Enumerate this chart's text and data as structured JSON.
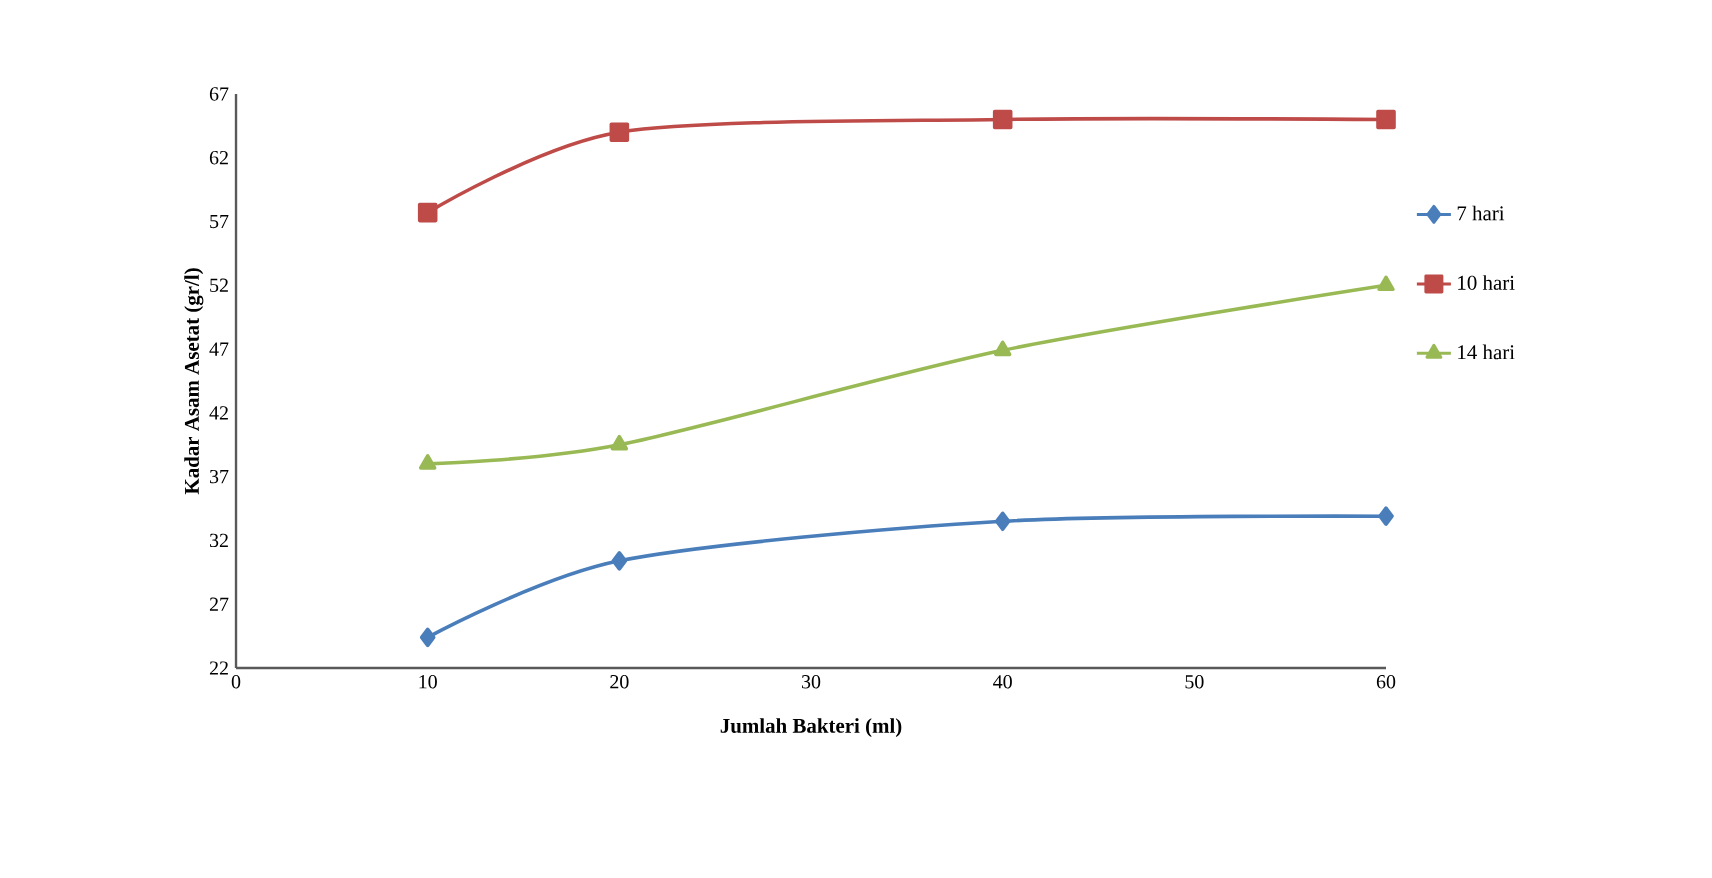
{
  "chart_data": {
    "type": "line",
    "xlabel": "Jumlah Bakteri (ml)",
    "ylabel": "Kadar Asam Asetat (gr/l)",
    "x": [
      10,
      20,
      40,
      60
    ],
    "series": [
      {
        "name": "7 hari",
        "color": "#4a7ebb",
        "marker": "diamond",
        "values": [
          24.4,
          30.4,
          33.5,
          33.9
        ]
      },
      {
        "name": "10 hari",
        "color": "#be4b48",
        "marker": "square",
        "values": [
          57.7,
          64.0,
          65.0,
          65.0
        ]
      },
      {
        "name": "14 hari",
        "color": "#98b954",
        "marker": "triangle",
        "values": [
          38.0,
          39.5,
          46.9,
          52.0
        ]
      }
    ],
    "xlim": [
      0,
      60
    ],
    "xticks": [
      0,
      10,
      20,
      30,
      40,
      50,
      60
    ],
    "ylim": [
      22,
      67
    ],
    "yticks": [
      22,
      27,
      32,
      37,
      42,
      47,
      52,
      57,
      62,
      67
    ],
    "grid": false,
    "legend": "right",
    "line_style": "solid"
  }
}
